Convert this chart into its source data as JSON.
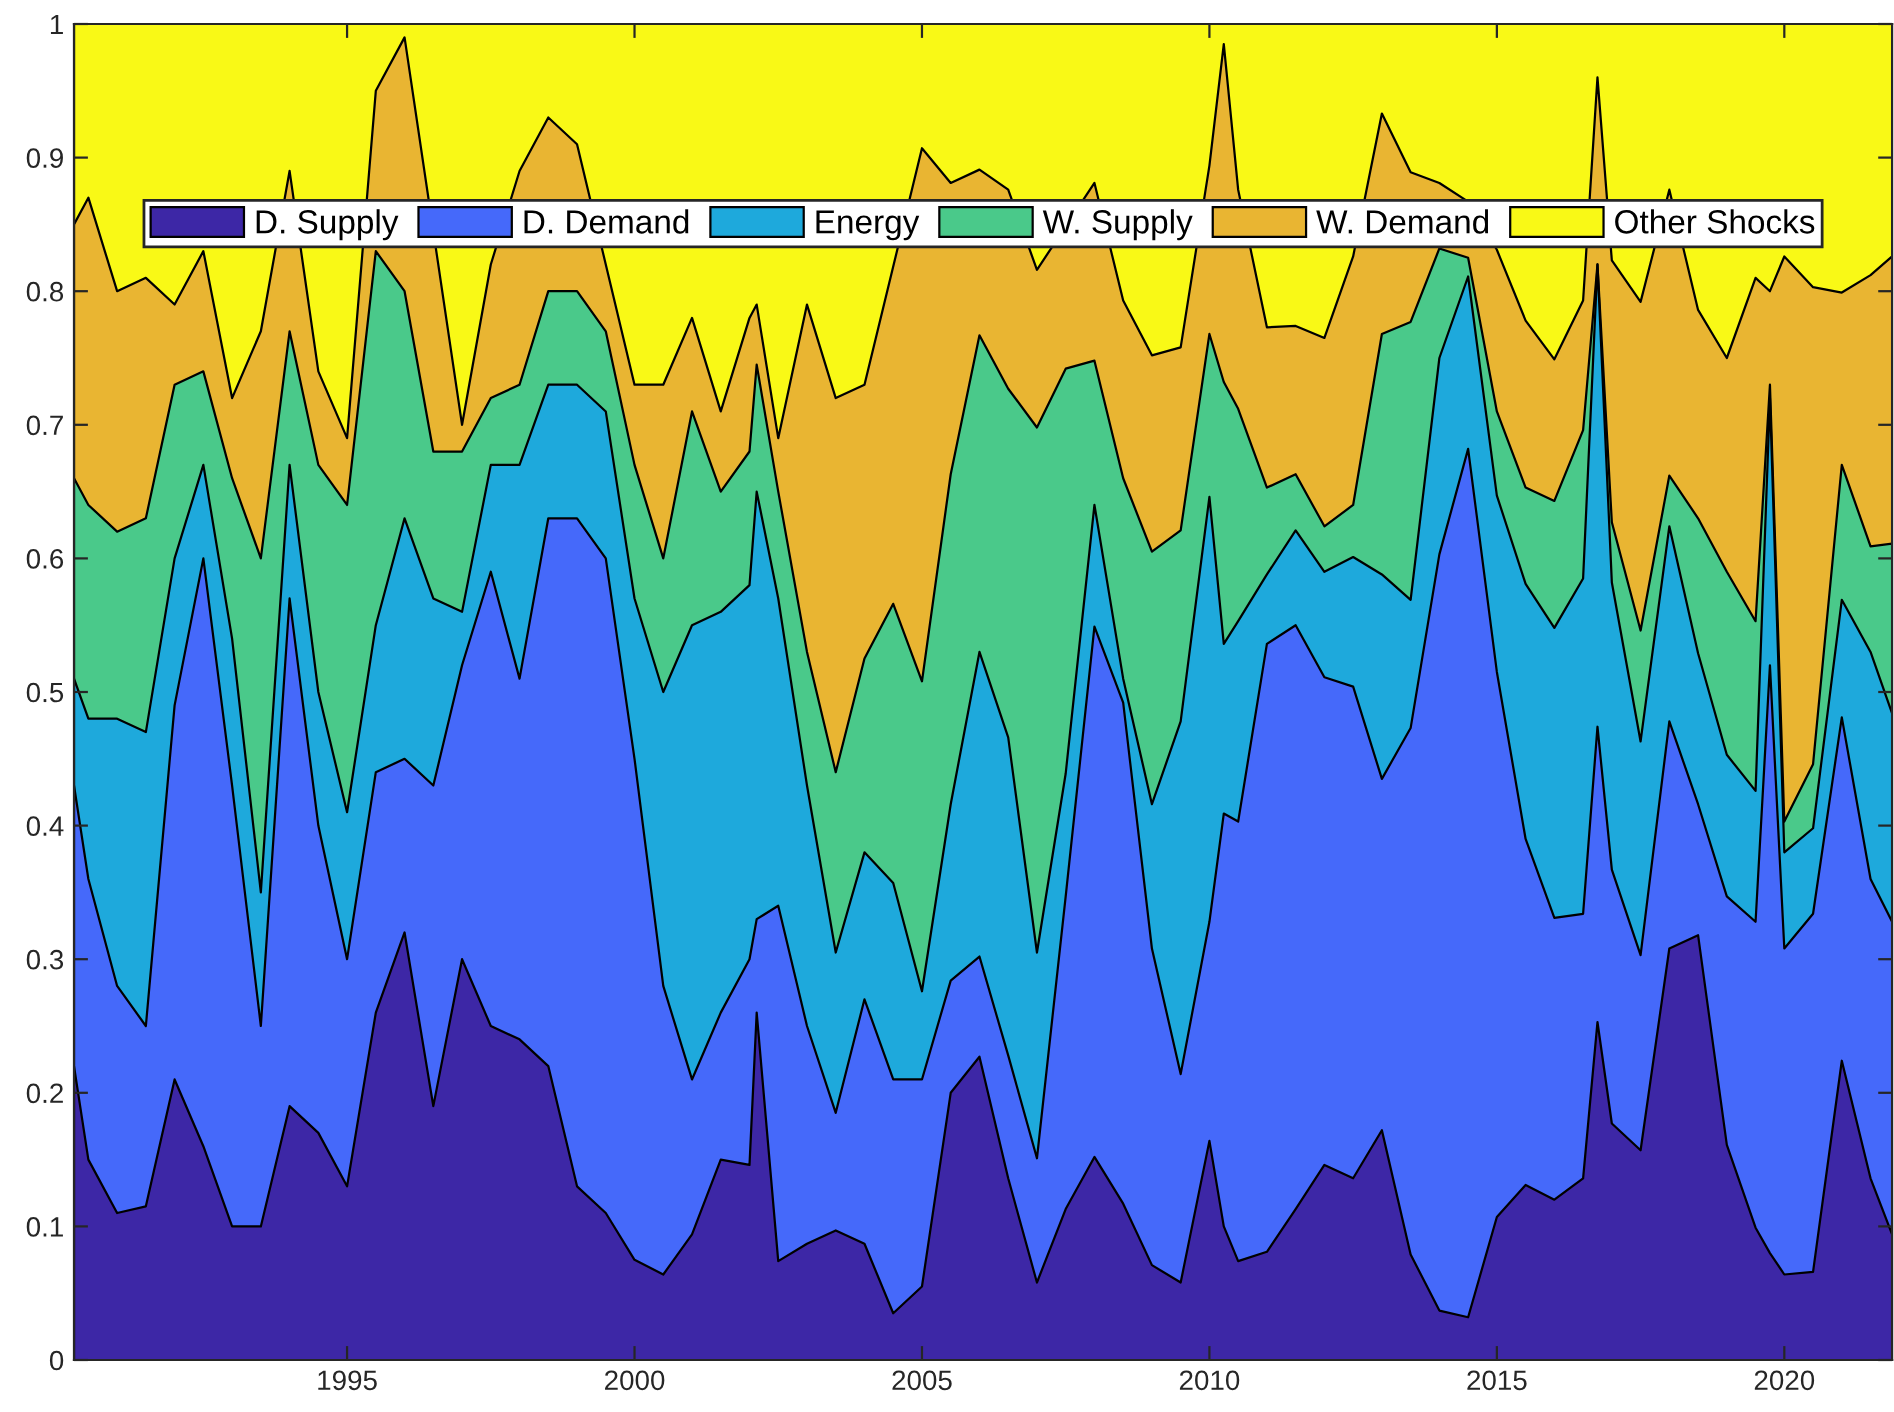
{
  "chart_data": {
    "type": "area",
    "stacked": true,
    "legend": "top",
    "grid": false,
    "line_style": "solid",
    "x": [
      1990.25,
      1990.5,
      1991,
      1991.5,
      1992,
      1992.5,
      1993,
      1993.5,
      1994,
      1994.5,
      1995,
      1995.5,
      1996,
      1996.5,
      1997,
      1997.5,
      1998,
      1998.5,
      1999,
      1999.5,
      2000,
      2000.5,
      2001,
      2001.5,
      2002,
      2002.125,
      2002.5,
      2003,
      2003.5,
      2004,
      2004.5,
      2005,
      2005.5,
      2006,
      2006.5,
      2007,
      2007.5,
      2008,
      2008.5,
      2009,
      2009.5,
      2010,
      2010.25,
      2010.5,
      2011,
      2011.5,
      2012,
      2012.5,
      2013,
      2013.5,
      2014,
      2014.5,
      2015,
      2015.5,
      2016,
      2016.5,
      2016.75,
      2017,
      2017.5,
      2018,
      2018.5,
      2019,
      2019.5,
      2019.75,
      2020,
      2020.5,
      2021,
      2021.5,
      2021.875
    ],
    "xlim": [
      1990.25,
      2021.875
    ],
    "xticks": [
      1995,
      2000,
      2005,
      2010,
      2015,
      2020
    ],
    "ylim": [
      0,
      1
    ],
    "yticks": [
      0,
      0.1,
      0.2,
      0.3,
      0.4,
      0.5,
      0.6,
      0.7,
      0.8,
      0.9,
      1
    ],
    "series": [
      {
        "name": "D. Supply",
        "color": "#3d27a6",
        "values": [
          0.22,
          0.15,
          0.11,
          0.115,
          0.21,
          0.16,
          0.1,
          0.1,
          0.19,
          0.17,
          0.13,
          0.26,
          0.32,
          0.19,
          0.3,
          0.25,
          0.24,
          0.22,
          0.13,
          0.11,
          0.075,
          0.064,
          0.094,
          0.15,
          0.146,
          0.26,
          0.074,
          0.087,
          0.097,
          0.087,
          0.035,
          0.055,
          0.2,
          0.227,
          0.136,
          0.058,
          0.113,
          0.152,
          0.117,
          0.071,
          0.058,
          0.164,
          0.1,
          0.074,
          0.081,
          0.113,
          0.146,
          0.136,
          0.172,
          0.079,
          0.037,
          0.032,
          0.107,
          0.131,
          0.12,
          0.136,
          0.253,
          0.177,
          0.157,
          0.308,
          0.318,
          0.161,
          0.099,
          0.08,
          0.064,
          0.066,
          0.224,
          0.136,
          0.094
        ]
      },
      {
        "name": "D. Demand",
        "color": "#4569fa",
        "values": [
          0.21,
          0.21,
          0.17,
          0.135,
          0.28,
          0.44,
          0.33,
          0.15,
          0.38,
          0.23,
          0.17,
          0.18,
          0.13,
          0.24,
          0.22,
          0.34,
          0.27,
          0.41,
          0.5,
          0.49,
          0.375,
          0.216,
          0.116,
          0.11,
          0.154,
          0.07,
          0.266,
          0.163,
          0.088,
          0.183,
          0.175,
          0.155,
          0.084,
          0.075,
          0.092,
          0.093,
          0.234,
          0.397,
          0.375,
          0.237,
          0.156,
          0.164,
          0.309,
          0.329,
          0.455,
          0.437,
          0.365,
          0.368,
          0.263,
          0.394,
          0.566,
          0.65,
          0.408,
          0.259,
          0.211,
          0.198,
          0.221,
          0.19,
          0.146,
          0.17,
          0.098,
          0.186,
          0.229,
          0.44,
          0.244,
          0.268,
          0.257,
          0.224,
          0.234
        ]
      },
      {
        "name": "Energy",
        "color": "#1ea9dc",
        "values": [
          0.08,
          0.12,
          0.2,
          0.22,
          0.11,
          0.07,
          0.11,
          0.1,
          0.1,
          0.1,
          0.11,
          0.11,
          0.18,
          0.14,
          0.04,
          0.08,
          0.16,
          0.1,
          0.1,
          0.11,
          0.12,
          0.22,
          0.34,
          0.3,
          0.28,
          0.32,
          0.23,
          0.18,
          0.12,
          0.11,
          0.147,
          0.066,
          0.132,
          0.228,
          0.238,
          0.154,
          0.092,
          0.091,
          0.018,
          0.108,
          0.264,
          0.318,
          0.127,
          0.15,
          0.052,
          0.071,
          0.079,
          0.097,
          0.153,
          0.096,
          0.147,
          0.129,
          0.132,
          0.191,
          0.217,
          0.251,
          0.346,
          0.215,
          0.16,
          0.146,
          0.113,
          0.106,
          0.098,
          0.2,
          0.072,
          0.064,
          0.088,
          0.17,
          0.156
        ]
      },
      {
        "name": "W. Supply",
        "color": "#4ac98a",
        "values": [
          0.15,
          0.16,
          0.14,
          0.16,
          0.13,
          0.07,
          0.12,
          0.25,
          0.1,
          0.17,
          0.23,
          0.28,
          0.17,
          0.11,
          0.12,
          0.05,
          0.06,
          0.07,
          0.07,
          0.06,
          0.1,
          0.1,
          0.16,
          0.09,
          0.1,
          0.095,
          0.08,
          0.1,
          0.135,
          0.145,
          0.209,
          0.232,
          0.247,
          0.237,
          0.261,
          0.393,
          0.303,
          0.108,
          0.15,
          0.189,
          0.143,
          0.122,
          0.196,
          0.159,
          0.065,
          0.042,
          0.034,
          0.039,
          0.18,
          0.208,
          0.082,
          0.014,
          0.063,
          0.072,
          0.095,
          0.111,
          0,
          0.045,
          0.083,
          0.038,
          0.101,
          0.137,
          0.127,
          0.01,
          0.023,
          0.048,
          0.101,
          0.079,
          0.127
        ]
      },
      {
        "name": "W. Demand",
        "color": "#e9b532",
        "values": [
          0.19,
          0.23,
          0.18,
          0.18,
          0.06,
          0.09,
          0.06,
          0.17,
          0.12,
          0.07,
          0.05,
          0.12,
          0.19,
          null,
          0.02,
          0.1,
          0.16,
          0.13,
          0.11,
          0.05,
          0.06,
          0.13,
          0.07,
          0.06,
          0.1,
          0.045,
          0.04,
          0.26,
          0.28,
          0.205,
          null,
          0.399,
          0.218,
          0.124,
          0.149,
          0.118,
          null,
          0.133,
          0.133,
          0.147,
          0.137,
          0.126,
          0.253,
          0.164,
          0.12,
          0.111,
          0.141,
          0.186,
          0.165,
          0.112,
          0.049,
          0.042,
          0.121,
          0.125,
          0.106,
          0.097,
          0.14,
          0.196,
          0.246,
          0.214,
          0.156,
          0.16,
          0.257,
          0.07,
          0.423,
          0.357,
          0.129,
          0.203,
          0.215
        ]
      },
      {
        "name": "Other Shocks",
        "color": "#f9f916",
        "values": [
          0.15,
          0.13,
          0.2,
          0.19,
          0.21,
          0.17,
          0.28,
          0.23,
          0.11,
          0.26,
          0.31,
          0.05,
          0.01,
          null,
          0.3,
          0.18,
          0.11,
          0.07,
          0.09,
          0.18,
          0.27,
          0.27,
          0.22,
          0.29,
          0.22,
          0.21,
          0.31,
          0.21,
          0.28,
          0.27,
          null,
          0.093,
          0.119,
          0.109,
          0.124,
          0.184,
          null,
          0.119,
          0.207,
          0.248,
          0.242,
          0.106,
          0.015,
          0.124,
          0.227,
          0.226,
          0.235,
          0.174,
          0.067,
          0.111,
          0.119,
          0.133,
          0.169,
          0.222,
          0.251,
          0.207,
          0.04,
          0.177,
          0.208,
          0.124,
          0.214,
          0.25,
          0.19,
          0.2,
          0.174,
          0.197,
          0.201,
          0.188,
          0.174
        ]
      }
    ]
  }
}
